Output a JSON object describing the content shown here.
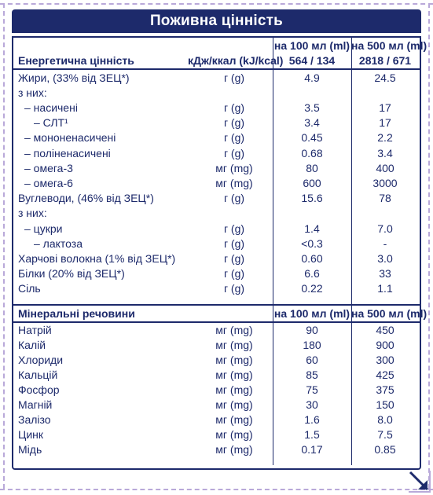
{
  "title": "Поживна цінність",
  "columns": {
    "per100": "на 100 мл (ml)",
    "per500": "на 500 мл (ml)"
  },
  "energy": {
    "label": "Енергетична цінність",
    "unit": "кДж/ккал (kJ/kcal)",
    "v100": "564 / 134",
    "v500": "2818 / 671"
  },
  "nutrients": [
    {
      "label": "Жири, (33% від ЗЕЦ*)",
      "unit": "г (g)",
      "v100": "4.9",
      "v500": "24.5"
    },
    {
      "label": "з них:",
      "unit": "",
      "v100": "",
      "v500": ""
    },
    {
      "label": "– насичені",
      "unit": "г (g)",
      "v100": "3.5",
      "v500": "17"
    },
    {
      "label": "– СЛТ¹",
      "unit": "г (g)",
      "v100": "3.4",
      "v500": "17"
    },
    {
      "label": "– мононенасичені",
      "unit": "г (g)",
      "v100": "0.45",
      "v500": "2.2"
    },
    {
      "label": "– поліненасичені",
      "unit": "г (g)",
      "v100": "0.68",
      "v500": "3.4"
    },
    {
      "label": "– омега-3",
      "unit": "мг (mg)",
      "v100": "80",
      "v500": "400"
    },
    {
      "label": "– омега-6",
      "unit": "мг (mg)",
      "v100": "600",
      "v500": "3000"
    },
    {
      "label": "Вуглеводи, (46% від ЗЕЦ*)",
      "unit": "г (g)",
      "v100": "15.6",
      "v500": "78"
    },
    {
      "label": "з них:",
      "unit": "",
      "v100": "",
      "v500": ""
    },
    {
      "label": "– цукри",
      "unit": "г (g)",
      "v100": "1.4",
      "v500": "7.0"
    },
    {
      "label": "– лактоза",
      "unit": "г (g)",
      "v100": "<0.3",
      "v500": "-"
    },
    {
      "label": "Харчові волокна (1% від ЗЕЦ*)",
      "unit": "г (g)",
      "v100": "0.60",
      "v500": "3.0"
    },
    {
      "label": "Білки (20% від ЗЕЦ*)",
      "unit": "г (g)",
      "v100": "6.6",
      "v500": "33"
    },
    {
      "label": "Сіль",
      "unit": "г (g)",
      "v100": "0.22",
      "v500": "1.1"
    }
  ],
  "minerals_header": {
    "label": "Мінеральні речовини",
    "per100": "на 100 мл (ml)",
    "per500": "на 500 мл (ml)"
  },
  "minerals": [
    {
      "label": "Натрій",
      "unit": "мг (mg)",
      "v100": "90",
      "v500": "450"
    },
    {
      "label": "Калій",
      "unit": "мг (mg)",
      "v100": "180",
      "v500": "900"
    },
    {
      "label": "Хлориди",
      "unit": "мг (mg)",
      "v100": "60",
      "v500": "300"
    },
    {
      "label": "Кальцій",
      "unit": "мг (mg)",
      "v100": "85",
      "v500": "425"
    },
    {
      "label": "Фосфор",
      "unit": "мг (mg)",
      "v100": "75",
      "v500": "375"
    },
    {
      "label": "Магній",
      "unit": "мг (mg)",
      "v100": "30",
      "v500": "150"
    },
    {
      "label": "Залізо",
      "unit": "мг (mg)",
      "v100": "1.6",
      "v500": "8.0"
    },
    {
      "label": "Цинк",
      "unit": "мг (mg)",
      "v100": "1.5",
      "v500": "7.5"
    },
    {
      "label": "Мідь",
      "unit": "мг (mg)",
      "v100": "0.17",
      "v500": "0.85"
    }
  ],
  "colors": {
    "navy": "#1d2a6b",
    "cut_border": "#b9a9d9"
  }
}
